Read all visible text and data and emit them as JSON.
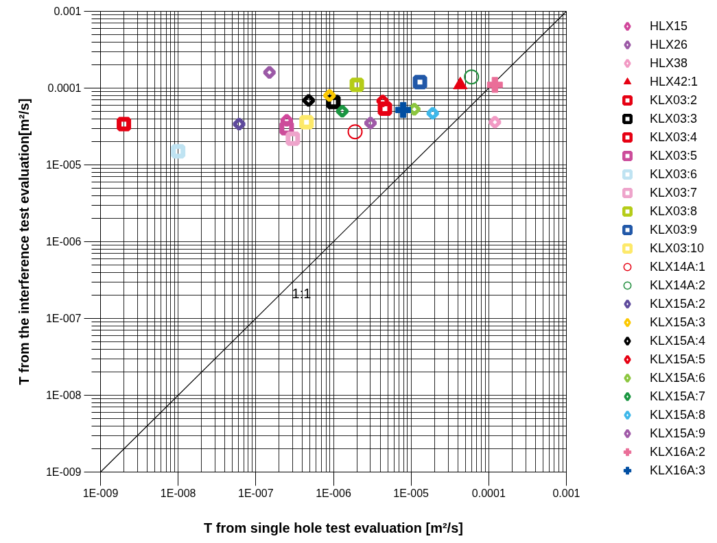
{
  "chart_data": {
    "type": "scatter",
    "xlabel": "T from single hole test evaluation [m²/s]",
    "ylabel": "T from the interference test evaluation[m²/s]",
    "log": "xy",
    "grid": true,
    "legend": "right",
    "xlim": [
      1e-09,
      0.001
    ],
    "ylim": [
      1e-09,
      0.001
    ],
    "xticks": [
      {
        "value": 1e-09,
        "label": "1E-009"
      },
      {
        "value": 1e-08,
        "label": "1E-008"
      },
      {
        "value": 1e-07,
        "label": "1E-007"
      },
      {
        "value": 1e-06,
        "label": "1E-006"
      },
      {
        "value": 1e-05,
        "label": "1E-005"
      },
      0.0001,
      0.001
    ],
    "yticks": [
      {
        "value": 1e-09,
        "label": "1E-009"
      },
      {
        "value": 1e-08,
        "label": "1E-008"
      },
      {
        "value": 1e-07,
        "label": "1E-007"
      },
      {
        "value": 1e-06,
        "label": "1E-006"
      },
      {
        "value": 1e-05,
        "label": "1E-005"
      },
      0.0001,
      0.001
    ],
    "annotations": [
      {
        "text": "1:1",
        "x": 2.2e-07,
        "y": 2.2e-07
      }
    ],
    "series": [
      {
        "name": "HLX15",
        "color": "#d1479b",
        "marker": "diamond",
        "x": [
          2.5e-07
        ],
        "values": [
          3.8e-05
        ]
      },
      {
        "name": "HLX26",
        "color": "#9b59a6",
        "marker": "diamond",
        "x": [
          1.5e-07
        ],
        "values": [
          0.00016
        ]
      },
      {
        "name": "HLX38",
        "color": "#f29ac4",
        "marker": "diamond",
        "x": [
          0.00012
        ],
        "values": [
          3.6e-05
        ]
      },
      {
        "name": "HLX42:1",
        "color": "#e60012",
        "marker": "triangle",
        "x": [
          4.3e-05
        ],
        "values": [
          0.00011
        ]
      },
      {
        "name": "KLX03:2",
        "color": "#e60012",
        "marker": "square",
        "x": [
          2e-09
        ],
        "values": [
          3.4e-05
        ]
      },
      {
        "name": "KLX03:3",
        "color": "#000000",
        "marker": "square",
        "x": [
          1e-06
        ],
        "values": [
          6.6e-05
        ]
      },
      {
        "name": "KLX03:4",
        "color": "#e60012",
        "marker": "square",
        "x": [
          4.6e-06
        ],
        "values": [
          5.4e-05
        ]
      },
      {
        "name": "KLX03:5",
        "color": "#cc4c9a",
        "marker": "square",
        "x": [
          2.5e-07
        ],
        "values": [
          3e-05
        ]
      },
      {
        "name": "KLX03:6",
        "color": "#bfe3f2",
        "marker": "square",
        "x": [
          1e-08
        ],
        "values": [
          1.5e-05
        ]
      },
      {
        "name": "KLX03:7",
        "color": "#eea4cb",
        "marker": "square",
        "x": [
          3e-07
        ],
        "values": [
          2.2e-05
        ]
      },
      {
        "name": "KLX03:8",
        "color": "#b5cc18",
        "marker": "square",
        "x": [
          2e-06
        ],
        "values": [
          0.00011
        ]
      },
      {
        "name": "KLX03:9",
        "color": "#2158a8",
        "marker": "square",
        "x": [
          1.3e-05
        ],
        "values": [
          0.00012
        ]
      },
      {
        "name": "KLX03:10",
        "color": "#fde96a",
        "marker": "square",
        "x": [
          4.5e-07
        ],
        "values": [
          3.6e-05
        ]
      },
      {
        "name": "KLX14A:1",
        "color": "#e60012",
        "marker": "circle",
        "x": [
          1.9e-06
        ],
        "values": [
          2.7e-05
        ]
      },
      {
        "name": "KLX14A:2",
        "color": "#1d8c3a",
        "marker": "circle",
        "x": [
          6e-05
        ],
        "values": [
          0.00014
        ]
      },
      {
        "name": "KLX15A:2",
        "color": "#5e4a9c",
        "marker": "diamond",
        "x": [
          6.1e-08
        ],
        "values": [
          3.4e-05
        ]
      },
      {
        "name": "KLX15A:3",
        "color": "#fcc800",
        "marker": "diamond",
        "x": [
          8.9e-07
        ],
        "values": [
          8e-05
        ]
      },
      {
        "name": "KLX15A:4",
        "color": "#000000",
        "marker": "diamond",
        "x": [
          4.8e-07
        ],
        "values": [
          6.9e-05
        ]
      },
      {
        "name": "KLX15A:5",
        "color": "#e60012",
        "marker": "diamond",
        "x": [
          4.3e-06
        ],
        "values": [
          6.8e-05
        ]
      },
      {
        "name": "KLX15A:6",
        "color": "#8cc63f",
        "marker": "diamond",
        "x": [
          1.1e-05
        ],
        "values": [
          5.3e-05
        ]
      },
      {
        "name": "KLX15A:7",
        "color": "#1a9641",
        "marker": "diamond",
        "x": [
          1.3e-06
        ],
        "values": [
          5e-05
        ]
      },
      {
        "name": "KLX15A:8",
        "color": "#3eb8ea",
        "marker": "diamond",
        "x": [
          1.9e-05
        ],
        "values": [
          4.7e-05
        ]
      },
      {
        "name": "KLX15A:9",
        "color": "#a05aa8",
        "marker": "diamond",
        "x": [
          3e-06
        ],
        "values": [
          3.5e-05
        ]
      },
      {
        "name": "KLX16A:2",
        "color": "#ea6e98",
        "marker": "cross",
        "x": [
          0.00012
        ],
        "values": [
          0.00011
        ]
      },
      {
        "name": "KLX16A:3",
        "color": "#004ea2",
        "marker": "cross",
        "x": [
          7.9e-06
        ],
        "values": [
          5.2e-05
        ]
      },
      {
        "type": "line",
        "color": "#000000",
        "marker": "none",
        "x": [
          1e-09,
          0.001
        ],
        "values": [
          1e-09,
          0.001
        ]
      }
    ]
  }
}
